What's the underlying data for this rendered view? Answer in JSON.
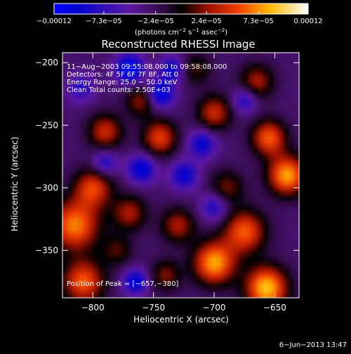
{
  "chart_data": {
    "type": "heatmap",
    "title": "Reconstructed RHESSI Image",
    "xlabel": "Heliocentric X (arcsec)",
    "ylabel": "Heliocentric Y (arcsec)",
    "xlim": [
      -825,
      -630
    ],
    "ylim": [
      -388,
      -192
    ],
    "x_ticks": [
      {
        "value": -800,
        "label": "−800"
      },
      {
        "value": -750,
        "label": "−750"
      },
      {
        "value": -700,
        "label": "−700"
      },
      {
        "value": -650,
        "label": "−650"
      }
    ],
    "y_ticks": [
      {
        "value": -200,
        "label": "−200"
      },
      {
        "value": -250,
        "label": "−250"
      },
      {
        "value": -300,
        "label": "−300"
      },
      {
        "value": -350,
        "label": "−350"
      }
    ],
    "colorbar": {
      "min": -0.00012,
      "max": 0.00012,
      "ticks": [
        {
          "value": -0.00012,
          "label": "−0.00012"
        },
        {
          "value": -7.3e-05,
          "label": "−7.3e−05"
        },
        {
          "value": -2.4e-05,
          "label": "−2.4e−05"
        },
        {
          "value": 2.4e-05,
          "label": "2.4e−05"
        },
        {
          "value": 7.3e-05,
          "label": "7.3e−05"
        },
        {
          "value": 0.00012,
          "label": "0.00012"
        }
      ],
      "unit_text": "(photons cm",
      "unit_exp1": "−2",
      "unit_mid": " s",
      "unit_exp2": "−1",
      "unit_mid2": " asec",
      "unit_exp3": "−2",
      "unit_end": ")"
    },
    "annotations": [
      "11−Aug−2003 09:55:08.000 to 09:58:08.000",
      "Detectors: 4F 5F 6F 7F 8F, Att 0",
      "Energy Range: 25.0 − 50.0 keV",
      "Clean     Total counts: 2.50E+03"
    ],
    "peak_label": "Position of Peak = [−657,−380]",
    "peak": {
      "x": -657,
      "y": -380
    },
    "blobs": [
      {
        "x": -815,
        "y": -330,
        "amp": 0.0001,
        "s": 14
      },
      {
        "x": -808,
        "y": -375,
        "amp": 9e-05,
        "s": 12
      },
      {
        "x": -790,
        "y": -255,
        "amp": 7e-05,
        "s": 10
      },
      {
        "x": -800,
        "y": -300,
        "amp": 8e-05,
        "s": 11
      },
      {
        "x": -770,
        "y": -320,
        "amp": 6e-05,
        "s": 10
      },
      {
        "x": -745,
        "y": -260,
        "amp": 8e-05,
        "s": 10
      },
      {
        "x": -760,
        "y": -230,
        "amp": 6e-05,
        "s": 9
      },
      {
        "x": -700,
        "y": -240,
        "amp": 7e-05,
        "s": 10
      },
      {
        "x": -690,
        "y": -300,
        "amp": 5e-05,
        "s": 10
      },
      {
        "x": -700,
        "y": -360,
        "amp": 0.00011,
        "s": 12
      },
      {
        "x": -675,
        "y": -335,
        "amp": 9e-05,
        "s": 12
      },
      {
        "x": -657,
        "y": -380,
        "amp": 0.00012,
        "s": 12
      },
      {
        "x": -640,
        "y": -290,
        "amp": 0.00011,
        "s": 11
      },
      {
        "x": -655,
        "y": -260,
        "amp": 9e-05,
        "s": 10
      },
      {
        "x": -730,
        "y": -330,
        "amp": 6e-05,
        "s": 10
      },
      {
        "x": -740,
        "y": -370,
        "amp": 5e-05,
        "s": 9
      },
      {
        "x": -715,
        "y": -205,
        "amp": 4e-05,
        "s": 9
      },
      {
        "x": -665,
        "y": -215,
        "amp": 6e-05,
        "s": 10
      },
      {
        "x": -780,
        "y": -350,
        "amp": 4e-05,
        "s": 9
      },
      {
        "x": -760,
        "y": -285,
        "amp": -8e-05,
        "s": 8
      },
      {
        "x": -725,
        "y": -290,
        "amp": -7e-05,
        "s": 8
      },
      {
        "x": -745,
        "y": -225,
        "amp": -9e-05,
        "s": 8
      },
      {
        "x": -770,
        "y": -205,
        "amp": -0.0001,
        "s": 8
      },
      {
        "x": -735,
        "y": -205,
        "amp": -7e-05,
        "s": 7
      },
      {
        "x": -710,
        "y": -265,
        "amp": -7e-05,
        "s": 8
      },
      {
        "x": -790,
        "y": -280,
        "amp": -6e-05,
        "s": 7
      },
      {
        "x": -765,
        "y": -375,
        "amp": -8e-05,
        "s": 7
      },
      {
        "x": -700,
        "y": -315,
        "amp": -6e-05,
        "s": 8
      },
      {
        "x": -675,
        "y": -230,
        "amp": -6e-05,
        "s": 7
      },
      {
        "x": -810,
        "y": -220,
        "amp": -5e-05,
        "s": 8
      }
    ],
    "background": -3e-05
  },
  "footer": {
    "date": "6−Jun−2013 13:47"
  }
}
